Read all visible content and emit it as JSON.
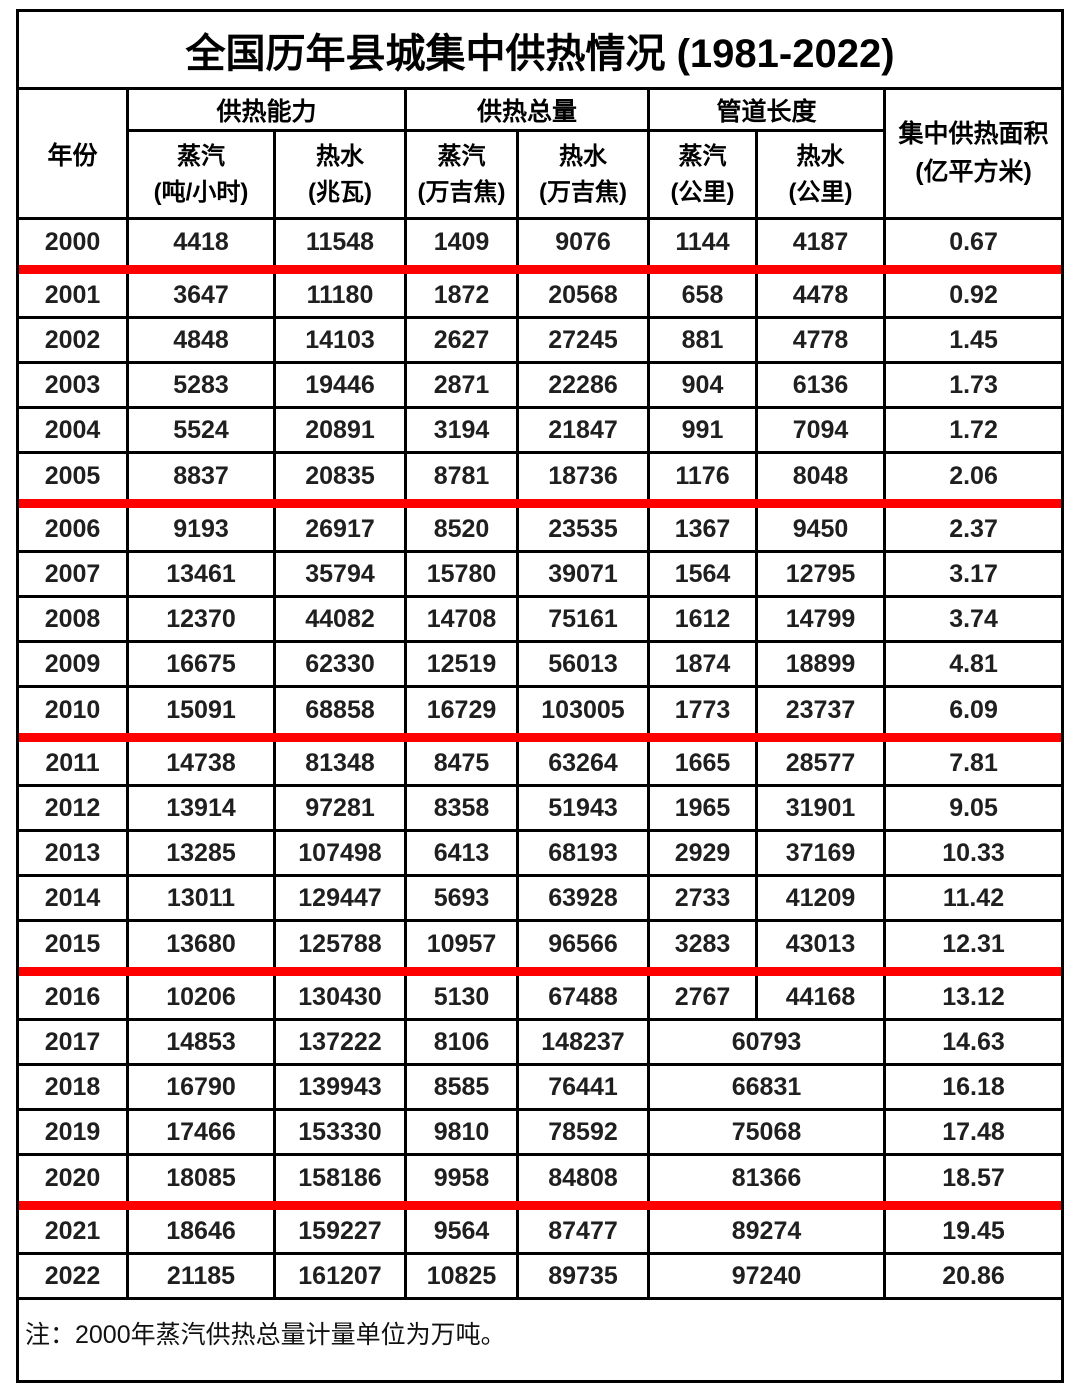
{
  "title": "全国历年县城集中供热情况 (1981-2022)",
  "header": {
    "year": "年份",
    "groups": [
      {
        "label": "供热能力",
        "sub": [
          "蒸汽\n(吨/小时)",
          "热水\n(兆瓦)"
        ]
      },
      {
        "label": "供热总量",
        "sub": [
          "蒸汽\n(万吉焦)",
          "热水\n(万吉焦)"
        ]
      },
      {
        "label": "管道长度",
        "sub": [
          "蒸汽\n(公里)",
          "热水\n(公里)"
        ]
      }
    ],
    "area": "集中供热面积\n(亿平方米)"
  },
  "rows": [
    {
      "year": "2000",
      "values": [
        "4418",
        "11548",
        "1409",
        "9076",
        "1144",
        "4187",
        "0.67"
      ],
      "red_after": true
    },
    {
      "year": "2001",
      "values": [
        "3647",
        "11180",
        "1872",
        "20568",
        "658",
        "4478",
        "0.92"
      ]
    },
    {
      "year": "2002",
      "values": [
        "4848",
        "14103",
        "2627",
        "27245",
        "881",
        "4778",
        "1.45"
      ]
    },
    {
      "year": "2003",
      "values": [
        "5283",
        "19446",
        "2871",
        "22286",
        "904",
        "6136",
        "1.73"
      ]
    },
    {
      "year": "2004",
      "values": [
        "5524",
        "20891",
        "3194",
        "21847",
        "991",
        "7094",
        "1.72"
      ]
    },
    {
      "year": "2005",
      "values": [
        "8837",
        "20835",
        "8781",
        "18736",
        "1176",
        "8048",
        "2.06"
      ],
      "red_after": true
    },
    {
      "year": "2006",
      "values": [
        "9193",
        "26917",
        "8520",
        "23535",
        "1367",
        "9450",
        "2.37"
      ]
    },
    {
      "year": "2007",
      "values": [
        "13461",
        "35794",
        "15780",
        "39071",
        "1564",
        "12795",
        "3.17"
      ]
    },
    {
      "year": "2008",
      "values": [
        "12370",
        "44082",
        "14708",
        "75161",
        "1612",
        "14799",
        "3.74"
      ]
    },
    {
      "year": "2009",
      "values": [
        "16675",
        "62330",
        "12519",
        "56013",
        "1874",
        "18899",
        "4.81"
      ]
    },
    {
      "year": "2010",
      "values": [
        "15091",
        "68858",
        "16729",
        "103005",
        "1773",
        "23737",
        "6.09"
      ],
      "red_after": true
    },
    {
      "year": "2011",
      "values": [
        "14738",
        "81348",
        "8475",
        "63264",
        "1665",
        "28577",
        "7.81"
      ]
    },
    {
      "year": "2012",
      "values": [
        "13914",
        "97281",
        "8358",
        "51943",
        "1965",
        "31901",
        "9.05"
      ]
    },
    {
      "year": "2013",
      "values": [
        "13285",
        "107498",
        "6413",
        "68193",
        "2929",
        "37169",
        "10.33"
      ]
    },
    {
      "year": "2014",
      "values": [
        "13011",
        "129447",
        "5693",
        "63928",
        "2733",
        "41209",
        "11.42"
      ]
    },
    {
      "year": "2015",
      "values": [
        "13680",
        "125788",
        "10957",
        "96566",
        "3283",
        "43013",
        "12.31"
      ],
      "red_after": true
    },
    {
      "year": "2016",
      "values": [
        "10206",
        "130430",
        "5130",
        "67488",
        "2767",
        "44168",
        "13.12"
      ]
    },
    {
      "year": "2017",
      "values": [
        "14853",
        "137222",
        "8106",
        "148237",
        "60793",
        "14.63"
      ],
      "merged_pipe": true
    },
    {
      "year": "2018",
      "values": [
        "16790",
        "139943",
        "8585",
        "76441",
        "66831",
        "16.18"
      ],
      "merged_pipe": true
    },
    {
      "year": "2019",
      "values": [
        "17466",
        "153330",
        "9810",
        "78592",
        "75068",
        "17.48"
      ],
      "merged_pipe": true
    },
    {
      "year": "2020",
      "values": [
        "18085",
        "158186",
        "9958",
        "84808",
        "81366",
        "18.57"
      ],
      "merged_pipe": true,
      "red_after": true
    },
    {
      "year": "2021",
      "values": [
        "18646",
        "159227",
        "9564",
        "87477",
        "89274",
        "19.45"
      ],
      "merged_pipe": true
    },
    {
      "year": "2022",
      "values": [
        "21185",
        "161207",
        "10825",
        "89735",
        "97240",
        "20.86"
      ],
      "merged_pipe": true
    }
  ],
  "note": "注：2000年蒸汽供热总量计量单位为万吨。",
  "colors": {
    "red_line": "#ff0000",
    "border": "#000000"
  }
}
